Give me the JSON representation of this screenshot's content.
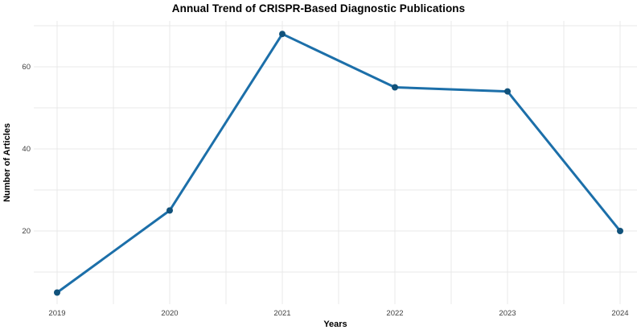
{
  "chart_data": {
    "type": "line",
    "title": "Annual Trend of CRISPR-Based Diagnostic Publications",
    "xlabel": "Years",
    "ylabel": "Number of Articles",
    "x": [
      2019,
      2020,
      2021,
      2022,
      2023,
      2024
    ],
    "values": [
      5,
      25,
      68,
      55,
      54,
      20
    ],
    "x_tick_labels": [
      "2019",
      "2020",
      "2021",
      "2022",
      "2023",
      "2024"
    ],
    "y_tick_values": [
      20,
      40,
      60
    ],
    "y_tick_labels": [
      "20",
      "40",
      "60"
    ],
    "ylim": [
      2.2,
      71.2
    ],
    "grid": "on",
    "gridline_y_values": [
      10,
      20,
      30,
      40,
      50,
      60,
      70
    ],
    "gridline_x_step_years": 0.5,
    "legend": "none",
    "colors": {
      "line": "#1c6fa9",
      "marker": "#11527b",
      "grid": "#e8e8e8",
      "tick_text": "#404040",
      "title_text": "#000000",
      "background": "#ffffff"
    }
  }
}
